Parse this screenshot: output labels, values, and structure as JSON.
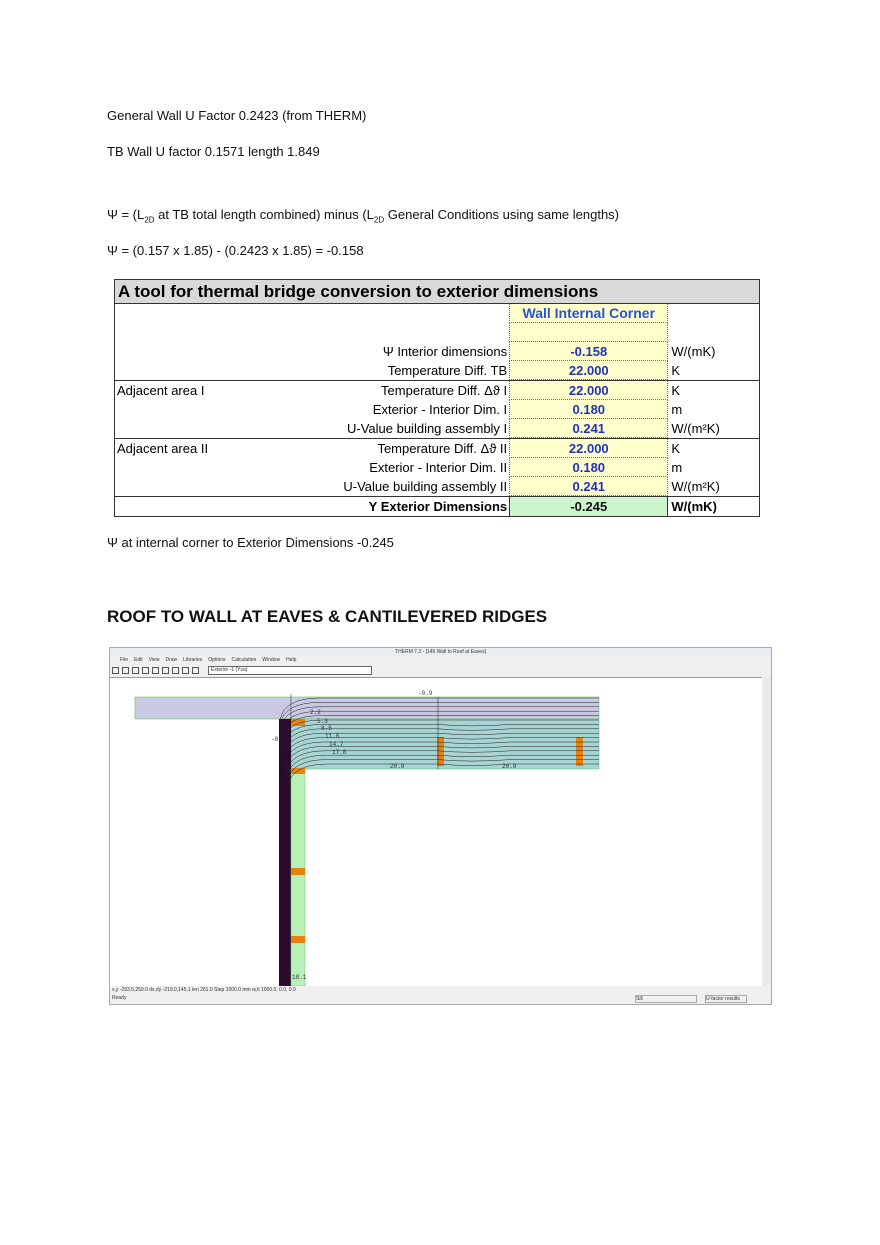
{
  "text": {
    "line1": "General Wall U Factor 0.2423 (from THERM)",
    "line2": "TB Wall U factor 0.1571 length 1.849",
    "line3_a": "Ψ = (L",
    "line3_sub1": "2D",
    "line3_b": " at TB total length combined) minus (L",
    "line3_sub2": "2D",
    "line3_c": " General Conditions using same lengths)",
    "line4": "Ψ = (0.157 x 1.85) - (0.2423 x 1.85) = -0.158",
    "line5": "Ψ at internal corner to Exterior Dimensions -0.245",
    "heading": "ROOF TO WALL AT EAVES & CANTILEVERED RIDGES"
  },
  "table": {
    "title": "A tool for thermal bridge conversion to exterior dimensions",
    "column_header": "Wall Internal Corner",
    "rows": [
      {
        "group": "",
        "label": "Ψ Interior dimensions",
        "value": "-0.158",
        "unit": "W/(mK)"
      },
      {
        "group": "",
        "label": "Temperature Diff. TB",
        "value": "22.000",
        "unit": "K"
      },
      {
        "group": "Adjacent area I",
        "label": "Temperature Diff. Δϑ I",
        "value": "22.000",
        "unit": "K"
      },
      {
        "group": "",
        "label": "Exterior - Interior Dim. I",
        "value": "0.180",
        "unit": "m"
      },
      {
        "group": "",
        "label": "U-Value building assembly I",
        "value": "0.241",
        "unit": "W/(m²K)"
      },
      {
        "group": "Adjacent area II",
        "label": "Temperature Diff. Δϑ II",
        "value": "22.000",
        "unit": "K"
      },
      {
        "group": "",
        "label": "Exterior - Interior Dim. II",
        "value": "0.180",
        "unit": "m"
      },
      {
        "group": "",
        "label": "U-Value building assembly II",
        "value": "0.241",
        "unit": "W/(m²K)"
      }
    ],
    "result": {
      "label": "Y Exterior Dimensions",
      "value": "-0.245",
      "unit": "W/(mK)"
    }
  },
  "therm": {
    "title": "THERM 7.3 - [145 Wall to Roof at Eaves]",
    "menu": [
      "File",
      "Edit",
      "View",
      "Draw",
      "Libraries",
      "Options",
      "Calculation",
      "Window",
      "Help"
    ],
    "boundary_select": "Exterior -1 (Ysa)",
    "isotherm_labels": [
      "-0.9",
      "2.2",
      "5.3",
      "8.5",
      "11.6",
      "14.7",
      "17.8",
      "20.9",
      "20.9",
      "-0",
      "18.1"
    ],
    "status_coords": "x,y -293.5,250.0     dx,dy -219.0,145.1     len 261.0   Step 1000.0 mm     w,h 1000.0,  0.0,   0.0",
    "status_ready": "Ready",
    "status_sill": "Sill",
    "status_ufactor": "U-factor results",
    "colors": {
      "roof": "#c9c9e3",
      "insulation": "#a8d4d4",
      "wall": "#2a0a2e",
      "stud": "#e8820e",
      "interior_finish": "#b8f0b8"
    }
  }
}
